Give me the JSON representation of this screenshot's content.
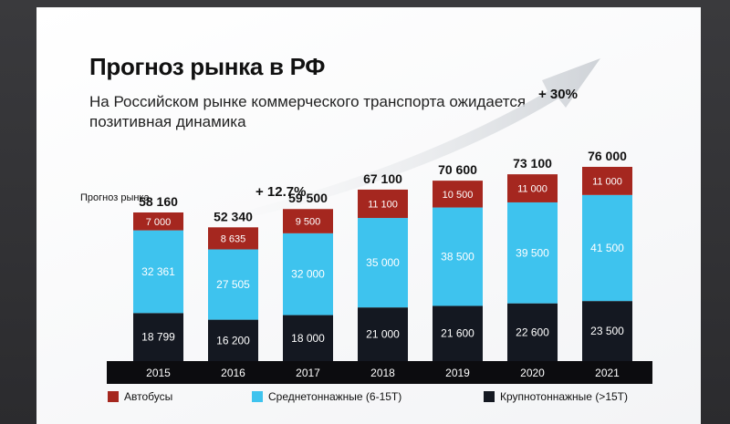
{
  "chart_data": {
    "type": "bar",
    "stacked": true,
    "title": "Прогноз рынка в РФ",
    "subtitle": "На Российском рынке коммерческого транспорта ожидается позитивная динамика",
    "series_label": "Прогноз рынка",
    "categories": [
      "2015",
      "2016",
      "2017",
      "2018",
      "2019",
      "2020",
      "2021"
    ],
    "totals": [
      "58 160",
      "52 340",
      "59 500",
      "67 100",
      "70 600",
      "73 100",
      "76 000"
    ],
    "series": [
      {
        "name": "Крупнотоннажные (>15Т)",
        "color": "#141821",
        "values": [
          18799,
          16200,
          18000,
          21000,
          21600,
          22600,
          23500
        ],
        "labels": [
          "18 799",
          "16 200",
          "18 000",
          "21 000",
          "21 600",
          "22 600",
          "23 500"
        ]
      },
      {
        "name": "Среднетоннажные (6-15Т)",
        "color": "#3ec3ee",
        "values": [
          32361,
          27505,
          32000,
          35000,
          38500,
          39500,
          41500
        ],
        "labels": [
          "32 361",
          "27 505",
          "32 000",
          "35 000",
          "38 500",
          "39 500",
          "41 500"
        ]
      },
      {
        "name": "Автобусы",
        "color": "#a5271f",
        "values": [
          7000,
          8635,
          9500,
          11100,
          10500,
          11000,
          11000
        ],
        "labels": [
          "7 000",
          "8 635",
          "9 500",
          "11 100",
          "10 500",
          "11 000",
          "11 000"
        ]
      }
    ],
    "annotations": [
      {
        "text": "+ 12.7%"
      },
      {
        "text": "+ 30%"
      }
    ],
    "legend_position": "bottom",
    "grid": false
  }
}
